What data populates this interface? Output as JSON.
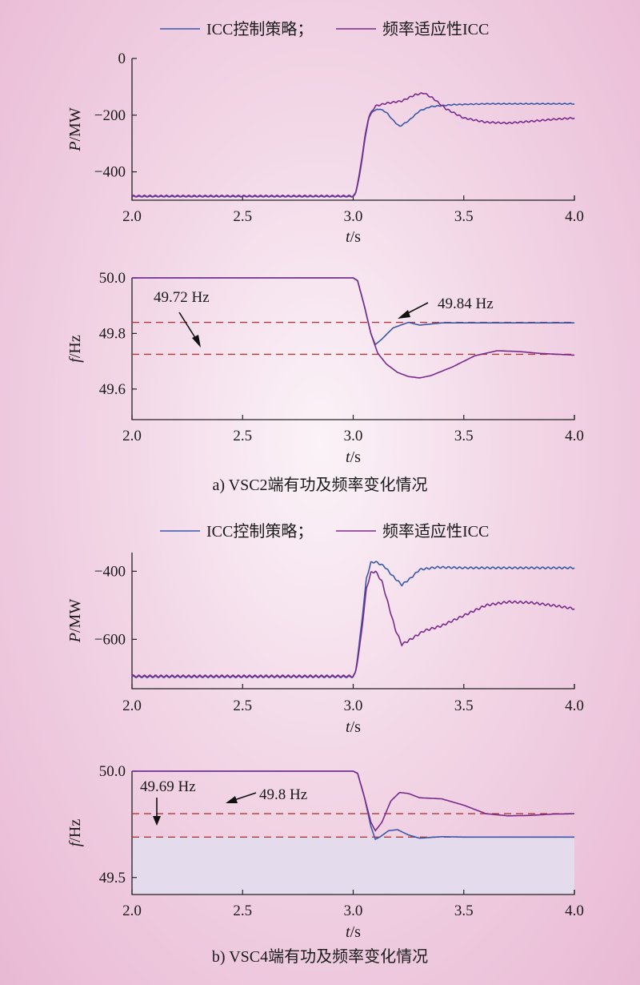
{
  "legend": [
    "ICC控制策略；",
    "频率适应性ICC"
  ],
  "colors": {
    "icc": "#3a58a8",
    "adaptive": "#7a2a8a",
    "reference": "#b03838"
  },
  "captions": [
    "a) VSC2端有功及频率变化情况",
    "b) VSC4端有功及频率变化情况"
  ],
  "chart_data": [
    {
      "type": "line",
      "xlabel": "t/s",
      "ylabel": "P/MW",
      "xlim": [
        2.0,
        4.0
      ],
      "ylim": [
        -500,
        0
      ],
      "xticks": [
        "2.0",
        "2.5",
        "3.0",
        "3.5",
        "4.0"
      ],
      "yticks": [
        {
          "v": 0,
          "label": "0"
        },
        {
          "v": -200,
          "label": "−200"
        },
        {
          "v": -400,
          "label": "−400"
        }
      ],
      "series": [
        {
          "name": "ICC控制策略",
          "ripple": 1.5,
          "points": [
            [
              2.0,
              -487
            ],
            [
              3.0,
              -487
            ],
            [
              3.01,
              -480
            ],
            [
              3.03,
              -410
            ],
            [
              3.05,
              -300
            ],
            [
              3.07,
              -210
            ],
            [
              3.09,
              -185
            ],
            [
              3.12,
              -178
            ],
            [
              3.15,
              -190
            ],
            [
              3.18,
              -218
            ],
            [
              3.21,
              -240
            ],
            [
              3.25,
              -220
            ],
            [
              3.3,
              -185
            ],
            [
              3.35,
              -170
            ],
            [
              3.45,
              -163
            ],
            [
              3.6,
              -160
            ],
            [
              3.8,
              -160
            ],
            [
              4.0,
              -160
            ]
          ]
        },
        {
          "name": "频率适应性ICC",
          "ripple": 2.5,
          "points": [
            [
              2.0,
              -485
            ],
            [
              3.0,
              -485
            ],
            [
              3.01,
              -478
            ],
            [
              3.03,
              -400
            ],
            [
              3.05,
              -290
            ],
            [
              3.07,
              -205
            ],
            [
              3.1,
              -168
            ],
            [
              3.15,
              -158
            ],
            [
              3.22,
              -150
            ],
            [
              3.28,
              -128
            ],
            [
              3.32,
              -122
            ],
            [
              3.36,
              -140
            ],
            [
              3.42,
              -178
            ],
            [
              3.5,
              -210
            ],
            [
              3.6,
              -225
            ],
            [
              3.7,
              -228
            ],
            [
              3.8,
              -222
            ],
            [
              3.9,
              -215
            ],
            [
              4.0,
              -210
            ]
          ]
        }
      ]
    },
    {
      "type": "line",
      "xlabel": "t/s",
      "ylabel": "f/Hz",
      "xlim": [
        2.0,
        4.0
      ],
      "ylim": [
        49.49,
        50.0
      ],
      "xticks": [
        "2.0",
        "2.5",
        "3.0",
        "3.5",
        "4.0"
      ],
      "yticks": [
        {
          "v": 50.0,
          "label": "50.0"
        },
        {
          "v": 49.8,
          "label": "49.8"
        },
        {
          "v": 49.6,
          "label": "49.6"
        }
      ],
      "references": [
        49.84,
        49.725
      ],
      "annotations": [
        "49.72 Hz",
        "49.84 Hz"
      ],
      "series": [
        {
          "name": "ICC控制策略",
          "ripple": 0,
          "points": [
            [
              2.0,
              50.0
            ],
            [
              3.0,
              50.0
            ],
            [
              3.02,
              49.99
            ],
            [
              3.05,
              49.9
            ],
            [
              3.08,
              49.8
            ],
            [
              3.1,
              49.76
            ],
            [
              3.13,
              49.78
            ],
            [
              3.18,
              49.82
            ],
            [
              3.25,
              49.84
            ],
            [
              3.3,
              49.83
            ],
            [
              3.4,
              49.838
            ],
            [
              4.0,
              49.838
            ]
          ]
        },
        {
          "name": "频率适应性ICC",
          "ripple": 0,
          "points": [
            [
              2.0,
              50.0
            ],
            [
              3.0,
              50.0
            ],
            [
              3.02,
              49.99
            ],
            [
              3.05,
              49.9
            ],
            [
              3.08,
              49.8
            ],
            [
              3.11,
              49.73
            ],
            [
              3.15,
              49.69
            ],
            [
              3.2,
              49.66
            ],
            [
              3.25,
              49.645
            ],
            [
              3.3,
              49.64
            ],
            [
              3.35,
              49.648
            ],
            [
              3.45,
              49.68
            ],
            [
              3.55,
              49.72
            ],
            [
              3.65,
              49.738
            ],
            [
              3.75,
              49.735
            ],
            [
              3.85,
              49.728
            ],
            [
              4.0,
              49.722
            ]
          ]
        }
      ]
    },
    {
      "type": "line",
      "xlabel": "t/s",
      "ylabel": "P/MW",
      "xlim": [
        2.0,
        4.0
      ],
      "ylim": [
        -745,
        -345
      ],
      "xticks": [
        "2.0",
        "2.5",
        "3.0",
        "3.5",
        "4.0"
      ],
      "yticks": [
        {
          "v": -400,
          "label": "−400"
        },
        {
          "v": -600,
          "label": "−600"
        }
      ],
      "series": [
        {
          "name": "ICC控制策略",
          "ripple": 2.5,
          "points": [
            [
              2.0,
              -710
            ],
            [
              3.0,
              -710
            ],
            [
              3.01,
              -700
            ],
            [
              3.03,
              -600
            ],
            [
              3.06,
              -420
            ],
            [
              3.08,
              -375
            ],
            [
              3.1,
              -372
            ],
            [
              3.14,
              -385
            ],
            [
              3.18,
              -415
            ],
            [
              3.22,
              -440
            ],
            [
              3.26,
              -420
            ],
            [
              3.3,
              -395
            ],
            [
              3.38,
              -388
            ],
            [
              3.5,
              -390
            ],
            [
              3.7,
              -390
            ],
            [
              4.0,
              -390
            ]
          ]
        },
        {
          "name": "频率适应性ICC",
          "ripple": 3.0,
          "points": [
            [
              2.0,
              -708
            ],
            [
              3.0,
              -708
            ],
            [
              3.01,
              -700
            ],
            [
              3.03,
              -620
            ],
            [
              3.06,
              -450
            ],
            [
              3.08,
              -405
            ],
            [
              3.1,
              -400
            ],
            [
              3.13,
              -430
            ],
            [
              3.16,
              -500
            ],
            [
              3.19,
              -570
            ],
            [
              3.22,
              -615
            ],
            [
              3.26,
              -600
            ],
            [
              3.32,
              -575
            ],
            [
              3.4,
              -560
            ],
            [
              3.5,
              -530
            ],
            [
              3.6,
              -500
            ],
            [
              3.7,
              -490
            ],
            [
              3.8,
              -492
            ],
            [
              3.9,
              -500
            ],
            [
              4.0,
              -510
            ]
          ]
        }
      ]
    },
    {
      "type": "line",
      "xlabel": "t/s",
      "ylabel": "f/Hz",
      "xlim": [
        2.0,
        4.0
      ],
      "ylim": [
        49.42,
        50.0
      ],
      "xticks": [
        "2.0",
        "2.5",
        "3.0",
        "3.5",
        "4.0"
      ],
      "yticks": [
        {
          "v": 50.0,
          "label": "50.0"
        },
        {
          "v": 49.5,
          "label": "49.5"
        }
      ],
      "references": [
        49.8,
        49.69
      ],
      "annotations": [
        "49.69 Hz",
        "49.8 Hz"
      ],
      "series": [
        {
          "name": "ICC控制策略",
          "ripple": 0,
          "points": [
            [
              2.0,
              50.0
            ],
            [
              3.0,
              50.0
            ],
            [
              3.02,
              49.99
            ],
            [
              3.05,
              49.88
            ],
            [
              3.08,
              49.74
            ],
            [
              3.1,
              49.68
            ],
            [
              3.12,
              49.69
            ],
            [
              3.16,
              49.72
            ],
            [
              3.2,
              49.725
            ],
            [
              3.25,
              49.7
            ],
            [
              3.3,
              49.685
            ],
            [
              3.4,
              49.692
            ],
            [
              3.5,
              49.69
            ],
            [
              4.0,
              49.69
            ]
          ]
        },
        {
          "name": "频率适应性ICC",
          "ripple": 0,
          "points": [
            [
              2.0,
              50.0
            ],
            [
              3.0,
              50.0
            ],
            [
              3.02,
              49.99
            ],
            [
              3.05,
              49.88
            ],
            [
              3.08,
              49.76
            ],
            [
              3.1,
              49.72
            ],
            [
              3.13,
              49.76
            ],
            [
              3.17,
              49.86
            ],
            [
              3.21,
              49.9
            ],
            [
              3.25,
              49.895
            ],
            [
              3.3,
              49.875
            ],
            [
              3.4,
              49.87
            ],
            [
              3.5,
              49.84
            ],
            [
              3.6,
              49.8
            ],
            [
              3.7,
              49.79
            ],
            [
              3.8,
              49.792
            ],
            [
              3.9,
              49.798
            ],
            [
              4.0,
              49.8
            ]
          ]
        }
      ]
    }
  ]
}
